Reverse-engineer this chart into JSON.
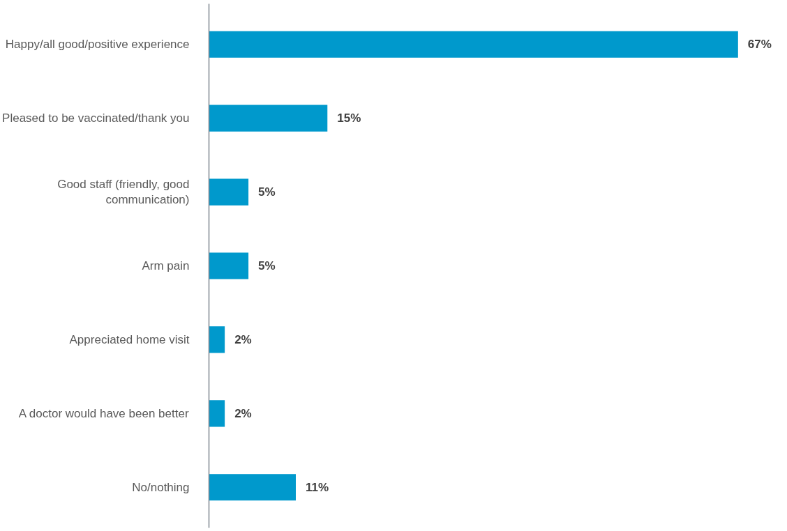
{
  "chart_data": {
    "type": "bar",
    "orientation": "horizontal",
    "categories": [
      "Happy/all good/positive experience",
      "Pleased to be vaccinated/thank you",
      "Good staff (friendly, good communication)",
      "Arm pain",
      "Appreciated home visit",
      "A doctor would have been better",
      "No/nothing"
    ],
    "values": [
      67,
      15,
      5,
      5,
      2,
      2,
      11
    ],
    "color": "#0099cc",
    "value_labels": [
      "67%",
      "15%",
      "5%",
      "5%",
      "2%",
      "2%",
      "11%"
    ],
    "grid": false
  }
}
